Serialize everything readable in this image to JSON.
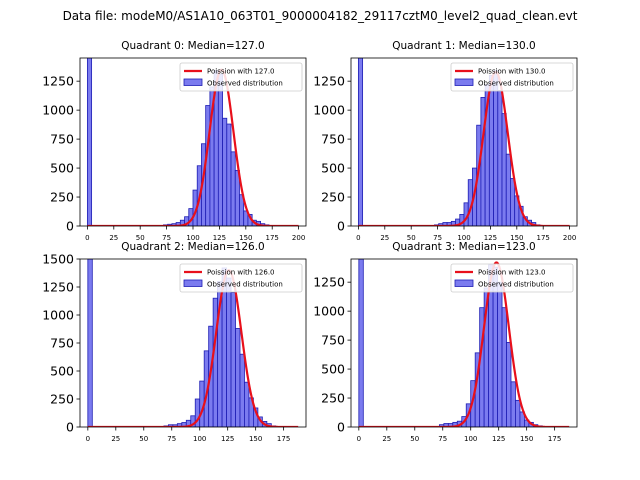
{
  "figure_title": "Data file: modeM0/AS1A10_063T01_9000004182_29117cztM0_level2_quad_clean.evt",
  "colors": {
    "bar_fill": "#7b7bef",
    "bar_edge": "#1e1eb4",
    "fit_line": "#e8101b",
    "axis": "#000000"
  },
  "chart_data": [
    {
      "type": "bar",
      "title": "Quadrant 0: Median=127.0",
      "legend": {
        "position": "top-right",
        "fit_label": "Poission with 127.0",
        "hist_label": "Observed distribution"
      },
      "xlim": [
        -7,
        207
      ],
      "ylim": [
        0,
        1450
      ],
      "xticks": [
        0,
        25,
        50,
        75,
        100,
        125,
        150,
        175,
        200
      ],
      "yticks": [
        0,
        250,
        500,
        750,
        1000,
        1250
      ],
      "bin_width": 4,
      "bins": [
        {
          "x": 0,
          "count": 1450
        },
        {
          "x": 72,
          "count": 10
        },
        {
          "x": 76,
          "count": 15
        },
        {
          "x": 80,
          "count": 20
        },
        {
          "x": 84,
          "count": 30
        },
        {
          "x": 88,
          "count": 50
        },
        {
          "x": 92,
          "count": 80
        },
        {
          "x": 96,
          "count": 150
        },
        {
          "x": 100,
          "count": 310
        },
        {
          "x": 104,
          "count": 520
        },
        {
          "x": 108,
          "count": 710
        },
        {
          "x": 112,
          "count": 1040
        },
        {
          "x": 116,
          "count": 1200
        },
        {
          "x": 120,
          "count": 1340
        },
        {
          "x": 124,
          "count": 1310
        },
        {
          "x": 128,
          "count": 930
        },
        {
          "x": 132,
          "count": 880
        },
        {
          "x": 136,
          "count": 640
        },
        {
          "x": 140,
          "count": 480
        },
        {
          "x": 144,
          "count": 270
        },
        {
          "x": 148,
          "count": 130
        },
        {
          "x": 152,
          "count": 100
        },
        {
          "x": 156,
          "count": 50
        },
        {
          "x": 160,
          "count": 40
        },
        {
          "x": 164,
          "count": 20
        },
        {
          "x": 168,
          "count": 10
        }
      ],
      "fit": {
        "mean": 127.0,
        "peak": 1350,
        "x_range": [
          0,
          200
        ]
      }
    },
    {
      "type": "bar",
      "title": "Quadrant 1: Median=130.0",
      "legend": {
        "position": "top-right",
        "fit_label": "Poission with 130.0",
        "hist_label": "Observed distribution"
      },
      "xlim": [
        -7,
        207
      ],
      "ylim": [
        0,
        1450
      ],
      "xticks": [
        0,
        25,
        50,
        75,
        100,
        125,
        150,
        175,
        200
      ],
      "yticks": [
        0,
        250,
        500,
        750,
        1000,
        1250
      ],
      "bin_width": 4,
      "bins": [
        {
          "x": 0,
          "count": 1450
        },
        {
          "x": 72,
          "count": 10
        },
        {
          "x": 76,
          "count": 20
        },
        {
          "x": 80,
          "count": 30
        },
        {
          "x": 84,
          "count": 30
        },
        {
          "x": 88,
          "count": 40
        },
        {
          "x": 92,
          "count": 60
        },
        {
          "x": 96,
          "count": 100
        },
        {
          "x": 100,
          "count": 200
        },
        {
          "x": 104,
          "count": 400
        },
        {
          "x": 108,
          "count": 500
        },
        {
          "x": 112,
          "count": 870
        },
        {
          "x": 116,
          "count": 1110
        },
        {
          "x": 120,
          "count": 1220
        },
        {
          "x": 124,
          "count": 1300
        },
        {
          "x": 128,
          "count": 1340
        },
        {
          "x": 132,
          "count": 1170
        },
        {
          "x": 136,
          "count": 970
        },
        {
          "x": 140,
          "count": 620
        },
        {
          "x": 144,
          "count": 410
        },
        {
          "x": 148,
          "count": 260
        },
        {
          "x": 152,
          "count": 170
        },
        {
          "x": 156,
          "count": 80
        },
        {
          "x": 160,
          "count": 50
        },
        {
          "x": 164,
          "count": 30
        },
        {
          "x": 168,
          "count": 10
        }
      ],
      "fit": {
        "mean": 130.0,
        "peak": 1330,
        "x_range": [
          0,
          200
        ]
      }
    },
    {
      "type": "bar",
      "title": "Quadrant 2: Median=126.0",
      "legend": {
        "position": "top-right",
        "fit_label": "Poission with 126.0",
        "hist_label": "Observed distribution"
      },
      "xlim": [
        -7,
        195
      ],
      "ylim": [
        0,
        1500
      ],
      "xticks": [
        0,
        25,
        50,
        75,
        100,
        125,
        150,
        175
      ],
      "yticks": [
        0,
        250,
        500,
        750,
        1000,
        1250,
        1500
      ],
      "bin_width": 4,
      "bins": [
        {
          "x": 0,
          "count": 1500
        },
        {
          "x": 68,
          "count": 10
        },
        {
          "x": 72,
          "count": 20
        },
        {
          "x": 76,
          "count": 20
        },
        {
          "x": 80,
          "count": 30
        },
        {
          "x": 84,
          "count": 40
        },
        {
          "x": 88,
          "count": 60
        },
        {
          "x": 92,
          "count": 100
        },
        {
          "x": 96,
          "count": 250
        },
        {
          "x": 100,
          "count": 410
        },
        {
          "x": 104,
          "count": 680
        },
        {
          "x": 108,
          "count": 900
        },
        {
          "x": 112,
          "count": 1150
        },
        {
          "x": 116,
          "count": 1300
        },
        {
          "x": 120,
          "count": 1420
        },
        {
          "x": 124,
          "count": 1330
        },
        {
          "x": 128,
          "count": 1200
        },
        {
          "x": 132,
          "count": 880
        },
        {
          "x": 136,
          "count": 650
        },
        {
          "x": 140,
          "count": 400
        },
        {
          "x": 144,
          "count": 260
        },
        {
          "x": 148,
          "count": 170
        },
        {
          "x": 152,
          "count": 90
        },
        {
          "x": 156,
          "count": 50
        },
        {
          "x": 160,
          "count": 30
        },
        {
          "x": 164,
          "count": 10
        }
      ],
      "fit": {
        "mean": 126.0,
        "peak": 1400,
        "x_range": [
          0,
          188
        ]
      }
    },
    {
      "type": "bar",
      "title": "Quadrant 3: Median=123.0",
      "legend": {
        "position": "top-right",
        "fit_label": "Poission with 123.0",
        "hist_label": "Observed distribution"
      },
      "xlim": [
        -7,
        195
      ],
      "ylim": [
        0,
        1450
      ],
      "xticks": [
        0,
        25,
        50,
        75,
        100,
        125,
        150,
        175
      ],
      "yticks": [
        0,
        250,
        500,
        750,
        1000,
        1250
      ],
      "bin_width": 4,
      "bins": [
        {
          "x": 0,
          "count": 1450
        },
        {
          "x": 72,
          "count": 20
        },
        {
          "x": 76,
          "count": 30
        },
        {
          "x": 80,
          "count": 30
        },
        {
          "x": 84,
          "count": 40
        },
        {
          "x": 88,
          "count": 50
        },
        {
          "x": 92,
          "count": 90
        },
        {
          "x": 96,
          "count": 200
        },
        {
          "x": 100,
          "count": 400
        },
        {
          "x": 104,
          "count": 640
        },
        {
          "x": 108,
          "count": 1030
        },
        {
          "x": 112,
          "count": 1200
        },
        {
          "x": 116,
          "count": 1400
        },
        {
          "x": 120,
          "count": 1380
        },
        {
          "x": 124,
          "count": 1250
        },
        {
          "x": 128,
          "count": 1030
        },
        {
          "x": 132,
          "count": 730
        },
        {
          "x": 136,
          "count": 390
        },
        {
          "x": 140,
          "count": 230
        },
        {
          "x": 144,
          "count": 130
        },
        {
          "x": 148,
          "count": 60
        },
        {
          "x": 152,
          "count": 40
        },
        {
          "x": 156,
          "count": 20
        },
        {
          "x": 160,
          "count": 10
        }
      ],
      "fit": {
        "mean": 123.0,
        "peak": 1420,
        "x_range": [
          0,
          188
        ]
      }
    }
  ]
}
